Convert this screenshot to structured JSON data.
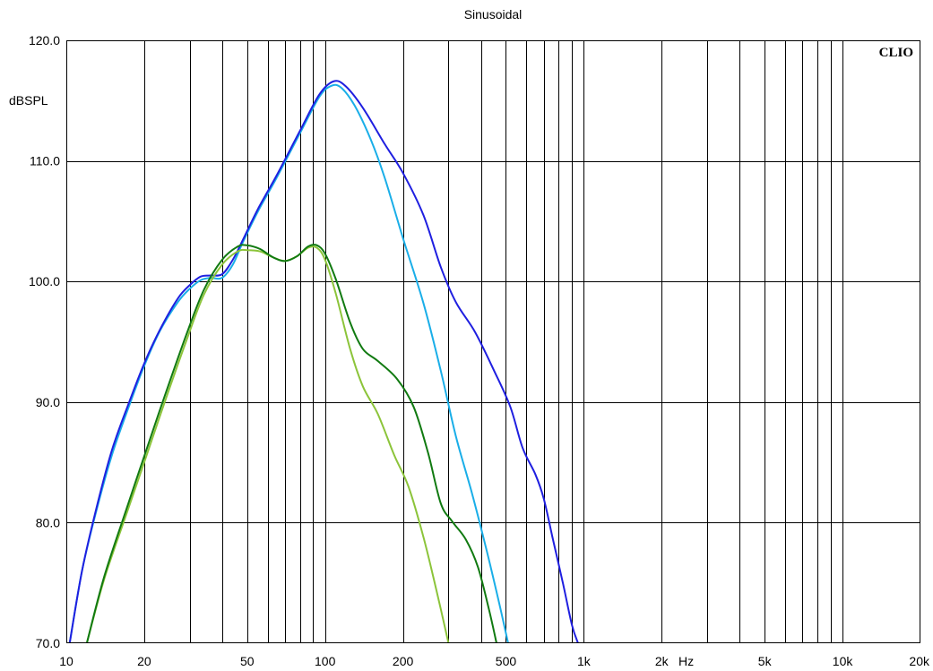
{
  "chart_data": {
    "type": "line",
    "title": "Sinusoidal",
    "brand": "CLIO",
    "ylabel": "dBSPL",
    "xlabel": "Hz",
    "xscale": "log",
    "xlim": [
      10,
      20000
    ],
    "ylim": [
      70,
      120
    ],
    "grid": true,
    "legend": "none",
    "x_ticks": [
      {
        "value": 10,
        "label": "10"
      },
      {
        "value": 20,
        "label": "20"
      },
      {
        "value": 50,
        "label": "50"
      },
      {
        "value": 100,
        "label": "100"
      },
      {
        "value": 200,
        "label": "200"
      },
      {
        "value": 500,
        "label": "500"
      },
      {
        "value": 1000,
        "label": "1k"
      },
      {
        "value": 2000,
        "label": "2k"
      },
      {
        "value": 5000,
        "label": "5k"
      },
      {
        "value": 10000,
        "label": "10k"
      },
      {
        "value": 20000,
        "label": "20k"
      }
    ],
    "y_ticks": [
      {
        "value": 70,
        "label": "70.0"
      },
      {
        "value": 80,
        "label": "80.0"
      },
      {
        "value": 90,
        "label": "90.0"
      },
      {
        "value": 100,
        "label": "100.0"
      },
      {
        "value": 110,
        "label": "110.0"
      },
      {
        "value": 120,
        "label": "120.0"
      }
    ],
    "series": [
      {
        "color": "#1f1fe0",
        "points": [
          [
            10.3,
            70
          ],
          [
            11.5,
            76
          ],
          [
            13,
            81
          ],
          [
            15,
            86
          ],
          [
            17.5,
            90
          ],
          [
            20,
            93.2
          ],
          [
            23,
            96
          ],
          [
            27,
            98.6
          ],
          [
            30,
            99.7
          ],
          [
            33,
            100.4
          ],
          [
            36,
            100.5
          ],
          [
            40,
            100.6
          ],
          [
            44,
            101.8
          ],
          [
            48,
            103.4
          ],
          [
            55,
            106
          ],
          [
            65,
            108.8
          ],
          [
            80,
            112.5
          ],
          [
            95,
            115.5
          ],
          [
            108,
            116.6
          ],
          [
            120,
            116.2
          ],
          [
            140,
            114.4
          ],
          [
            170,
            111.4
          ],
          [
            200,
            109
          ],
          [
            240,
            105.5
          ],
          [
            280,
            101.2
          ],
          [
            320,
            98.3
          ],
          [
            380,
            95.8
          ],
          [
            450,
            92.6
          ],
          [
            520,
            89.6
          ],
          [
            580,
            86.2
          ],
          [
            650,
            84
          ],
          [
            700,
            82
          ],
          [
            760,
            78.6
          ],
          [
            830,
            75
          ],
          [
            900,
            71.5
          ],
          [
            950,
            70
          ]
        ]
      },
      {
        "color": "#1aaee8",
        "points": [
          [
            10.3,
            70
          ],
          [
            11.5,
            76
          ],
          [
            13,
            80.8
          ],
          [
            15,
            85.6
          ],
          [
            17.5,
            89.7
          ],
          [
            20,
            93
          ],
          [
            23,
            95.9
          ],
          [
            27,
            98.3
          ],
          [
            30,
            99.4
          ],
          [
            33,
            100.1
          ],
          [
            36,
            100.3
          ],
          [
            40,
            100.3
          ],
          [
            44,
            101.4
          ],
          [
            48,
            103.2
          ],
          [
            55,
            105.8
          ],
          [
            65,
            108.6
          ],
          [
            80,
            112.3
          ],
          [
            95,
            115.3
          ],
          [
            105,
            116.2
          ],
          [
            115,
            116.1
          ],
          [
            130,
            114.6
          ],
          [
            150,
            111.8
          ],
          [
            170,
            108.6
          ],
          [
            200,
            103.6
          ],
          [
            240,
            98.2
          ],
          [
            280,
            92.6
          ],
          [
            320,
            87.2
          ],
          [
            370,
            82.4
          ],
          [
            420,
            77.8
          ],
          [
            470,
            73.4
          ],
          [
            510,
            70
          ]
        ]
      },
      {
        "color": "#117a11",
        "points": [
          [
            12,
            70
          ],
          [
            14,
            75.5
          ],
          [
            17,
            81
          ],
          [
            20,
            85.5
          ],
          [
            24,
            90.5
          ],
          [
            29,
            95.5
          ],
          [
            34,
            99.3
          ],
          [
            40,
            101.8
          ],
          [
            46,
            102.9
          ],
          [
            50,
            103
          ],
          [
            56,
            102.7
          ],
          [
            63,
            102
          ],
          [
            70,
            101.7
          ],
          [
            78,
            102.1
          ],
          [
            86,
            102.9
          ],
          [
            93,
            103
          ],
          [
            100,
            102.3
          ],
          [
            110,
            100.2
          ],
          [
            125,
            96.6
          ],
          [
            140,
            94.4
          ],
          [
            160,
            93.4
          ],
          [
            190,
            91.9
          ],
          [
            220,
            89.6
          ],
          [
            250,
            85.8
          ],
          [
            280,
            81.6
          ],
          [
            310,
            80.1
          ],
          [
            350,
            78.6
          ],
          [
            390,
            76.3
          ],
          [
            430,
            72.8
          ],
          [
            460,
            70
          ]
        ]
      },
      {
        "color": "#8cc43a",
        "points": [
          [
            12,
            70
          ],
          [
            14,
            75.3
          ],
          [
            17,
            80.6
          ],
          [
            20,
            85
          ],
          [
            24,
            90
          ],
          [
            29,
            95
          ],
          [
            34,
            98.9
          ],
          [
            40,
            101.4
          ],
          [
            46,
            102.5
          ],
          [
            50,
            102.6
          ],
          [
            56,
            102.5
          ],
          [
            63,
            102
          ],
          [
            70,
            101.7
          ],
          [
            78,
            102.1
          ],
          [
            86,
            102.8
          ],
          [
            93,
            102.8
          ],
          [
            100,
            101.8
          ],
          [
            110,
            99
          ],
          [
            125,
            94.4
          ],
          [
            140,
            91.3
          ],
          [
            160,
            89
          ],
          [
            185,
            85.6
          ],
          [
            210,
            83
          ],
          [
            240,
            78.8
          ],
          [
            270,
            74.3
          ],
          [
            300,
            70
          ]
        ]
      }
    ]
  }
}
